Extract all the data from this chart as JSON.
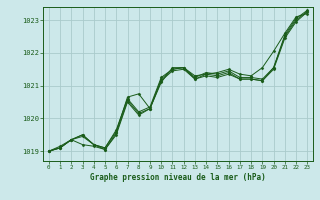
{
  "title": "Graphe pression niveau de la mer (hPa)",
  "background_color": "#cce8ea",
  "grid_color": "#aacbcc",
  "line_color": "#1a5c1a",
  "marker_color": "#1a5c1a",
  "xlim": [
    -0.5,
    23.5
  ],
  "ylim": [
    1018.7,
    1023.4
  ],
  "yticks": [
    1019,
    1020,
    1021,
    1022,
    1023
  ],
  "xticks": [
    0,
    1,
    2,
    3,
    4,
    5,
    6,
    7,
    8,
    9,
    10,
    11,
    12,
    13,
    14,
    15,
    16,
    17,
    18,
    19,
    20,
    21,
    22,
    23
  ],
  "series": [
    [
      1019.0,
      1019.1,
      1019.35,
      1019.5,
      1019.2,
      1019.1,
      1019.6,
      1020.65,
      1020.75,
      1020.3,
      1021.1,
      1021.55,
      1021.55,
      1021.3,
      1021.35,
      1021.4,
      1021.5,
      1021.35,
      1021.3,
      1021.55,
      1022.05,
      1022.6,
      1023.1,
      1023.2
    ],
    [
      1019.0,
      1019.1,
      1019.35,
      1019.5,
      1019.2,
      1019.1,
      1019.65,
      1020.6,
      1020.2,
      1020.35,
      1021.25,
      1021.5,
      1021.55,
      1021.25,
      1021.4,
      1021.35,
      1021.45,
      1021.25,
      1021.25,
      1021.2,
      1021.55,
      1022.55,
      1023.05,
      1023.3
    ],
    [
      1019.0,
      1019.1,
      1019.35,
      1019.45,
      1019.2,
      1019.05,
      1019.55,
      1020.55,
      1020.15,
      1020.3,
      1021.2,
      1021.5,
      1021.55,
      1021.2,
      1021.35,
      1021.3,
      1021.4,
      1021.2,
      1021.2,
      1021.15,
      1021.55,
      1022.5,
      1023.0,
      1023.27
    ],
    [
      1019.0,
      1019.15,
      1019.35,
      1019.2,
      1019.15,
      1019.05,
      1019.5,
      1020.5,
      1020.1,
      1020.3,
      1021.15,
      1021.45,
      1021.5,
      1021.2,
      1021.3,
      1021.25,
      1021.35,
      1021.2,
      1021.2,
      1021.15,
      1021.5,
      1022.45,
      1022.95,
      1023.25
    ]
  ]
}
